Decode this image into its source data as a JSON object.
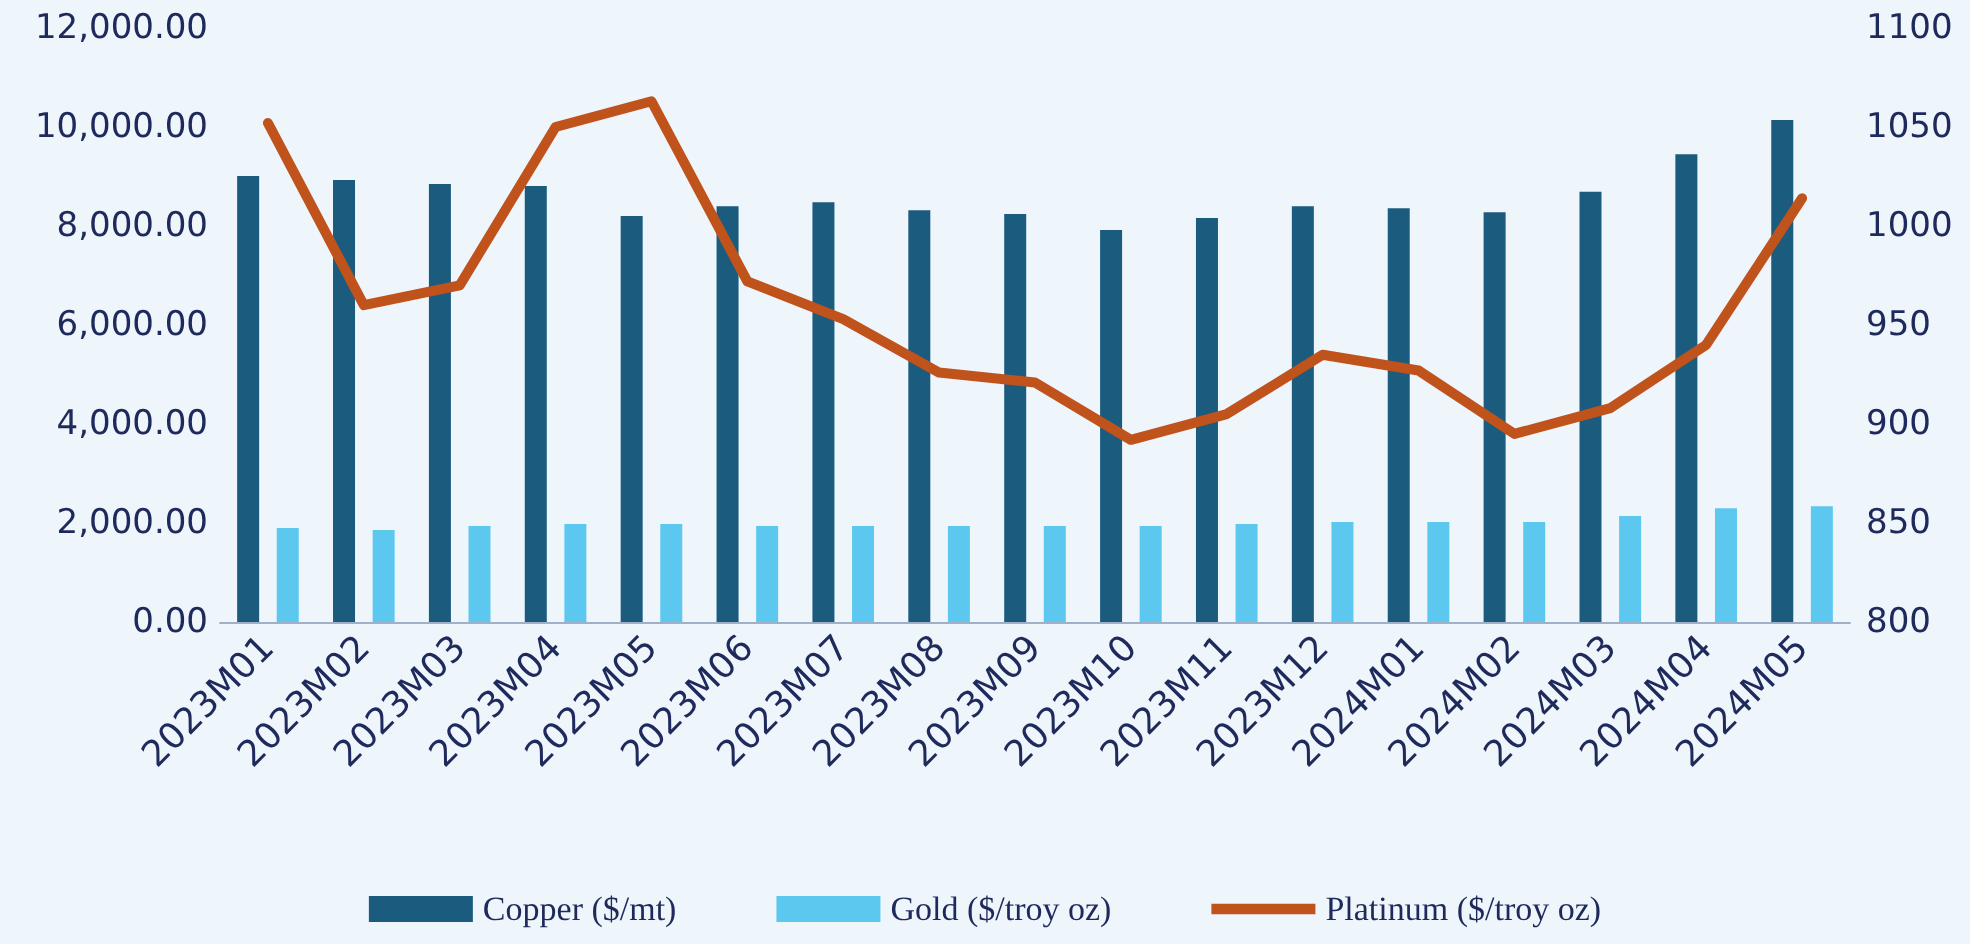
{
  "chart_data": {
    "type": "bar",
    "categories": [
      "2023M01",
      "2023M02",
      "2023M03",
      "2023M04",
      "2023M05",
      "2023M06",
      "2023M07",
      "2023M08",
      "2023M09",
      "2023M10",
      "2023M11",
      "2023M12",
      "2024M01",
      "2024M02",
      "2024M03",
      "2024M04",
      "2024M05"
    ],
    "series": [
      {
        "name": "Copper ($/mt)",
        "color": "#1b5b7e",
        "values": [
          9010,
          8930,
          8850,
          8810,
          8200,
          8400,
          8480,
          8320,
          8240,
          7920,
          8160,
          8400,
          8360,
          8280,
          8690,
          9450,
          10140
        ]
      },
      {
        "name": "Gold ($/troy oz)",
        "color": "#5cc8f0",
        "values": [
          1900,
          1860,
          1940,
          1980,
          1980,
          1940,
          1940,
          1940,
          1940,
          1940,
          1980,
          2020,
          2020,
          2020,
          2140,
          2300,
          2340
        ]
      },
      {
        "name": "Platinum ($/troy oz)",
        "type": "line",
        "axis": "y2",
        "color": "#c0521c",
        "values": [
          1052,
          960,
          970,
          1050,
          1063,
          972,
          953,
          926,
          921,
          892,
          905,
          935,
          927,
          895,
          908,
          940,
          1014
        ]
      }
    ],
    "ylim": [
      0,
      12000
    ],
    "yticks": [
      {
        "value": 0,
        "label": "0.00"
      },
      {
        "value": 2000,
        "label": "2,000.00"
      },
      {
        "value": 4000,
        "label": "4,000.00"
      },
      {
        "value": 6000,
        "label": "6,000.00"
      },
      {
        "value": 8000,
        "label": "8,000.00"
      },
      {
        "value": 10000,
        "label": "10,000.00"
      },
      {
        "value": 12000,
        "label": "12,000.00"
      }
    ],
    "y2lim": [
      800,
      1100
    ],
    "y2ticks": [
      {
        "value": 800,
        "label": "800"
      },
      {
        "value": 850,
        "label": "850"
      },
      {
        "value": 900,
        "label": "900"
      },
      {
        "value": 950,
        "label": "950"
      },
      {
        "value": 1000,
        "label": "1000"
      },
      {
        "value": 1050,
        "label": "1050"
      },
      {
        "value": 1100,
        "label": "1100"
      }
    ],
    "grid": false,
    "legend": "bottom",
    "marker": "none",
    "line_style": "solid"
  }
}
